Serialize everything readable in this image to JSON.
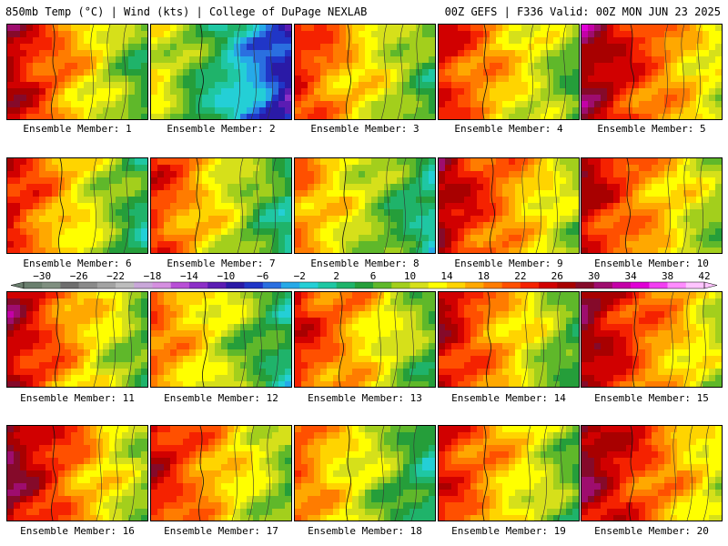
{
  "header": {
    "left_title": "850mb Temp (°C) | Wind (kts) | College of DuPage NEXLAB",
    "right_title": "00Z GEFS | F336 Valid: 00Z MON JUN 23 2025"
  },
  "panels": [
    {
      "label": "Ensemble Member: 1",
      "base": 28,
      "grad": -0.15
    },
    {
      "label": "Ensemble Member: 2",
      "base": 14,
      "grad": -0.15
    },
    {
      "label": "Ensemble Member: 3",
      "base": 24,
      "grad": -0.12
    },
    {
      "label": "Ensemble Member: 4",
      "base": 25,
      "grad": -0.12
    },
    {
      "label": "Ensemble Member: 5",
      "base": 30,
      "grad": -0.12
    },
    {
      "label": "Ensemble Member: 6",
      "base": 25,
      "grad": -0.14
    },
    {
      "label": "Ensemble Member: 7",
      "base": 24,
      "grad": -0.14
    },
    {
      "label": "Ensemble Member: 8",
      "base": 20,
      "grad": -0.12
    },
    {
      "label": "Ensemble Member: 9",
      "base": 28,
      "grad": -0.12
    },
    {
      "label": "Ensemble Member: 10",
      "base": 27,
      "grad": -0.12
    },
    {
      "label": "Ensemble Member: 11",
      "base": 28,
      "grad": -0.14
    },
    {
      "label": "Ensemble Member: 12",
      "base": 21,
      "grad": -0.12
    },
    {
      "label": "Ensemble Member: 13",
      "base": 25,
      "grad": -0.12
    },
    {
      "label": "Ensemble Member: 14",
      "base": 27,
      "grad": -0.14
    },
    {
      "label": "Ensemble Member: 15",
      "base": 29,
      "grad": -0.12
    },
    {
      "label": "Ensemble Member: 16",
      "base": 30,
      "grad": -0.14
    },
    {
      "label": "Ensemble Member: 17",
      "base": 26,
      "grad": -0.12
    },
    {
      "label": "Ensemble Member: 18",
      "base": 21,
      "grad": -0.12
    },
    {
      "label": "Ensemble Member: 19",
      "base": 25,
      "grad": -0.12
    },
    {
      "label": "Ensemble Member: 20",
      "base": 30,
      "grad": -0.12
    }
  ],
  "colorbar": {
    "labels": [
      "−30",
      "−26",
      "−22",
      "−18",
      "−14",
      "−10",
      "−6",
      "−2",
      "2",
      "6",
      "10",
      "14",
      "18",
      "22",
      "26",
      "30",
      "34",
      "38",
      "42"
    ],
    "min": -32,
    "step": 2,
    "colors": [
      "#6a7f6e",
      "#7f8f80",
      "#6e6e6e",
      "#8a8a8a",
      "#a3a3a3",
      "#bdbdbd",
      "#c9a7d9",
      "#d58fe0",
      "#b84fd6",
      "#8c2fc7",
      "#5b1cb3",
      "#2a1aa6",
      "#2036c7",
      "#2a6fe0",
      "#26a9e8",
      "#24cfd6",
      "#1fc7a3",
      "#1fb36a",
      "#259e3a",
      "#5fb82a",
      "#a3cf1c",
      "#d6e01a",
      "#ffff00",
      "#ffd400",
      "#ffa800",
      "#ff7c00",
      "#ff5000",
      "#f52200",
      "#d10000",
      "#a80000",
      "#850a2a",
      "#9e0d6e",
      "#c400a8",
      "#e000d6",
      "#f23ff2",
      "#ff8cff",
      "#ffc4ff"
    ]
  }
}
